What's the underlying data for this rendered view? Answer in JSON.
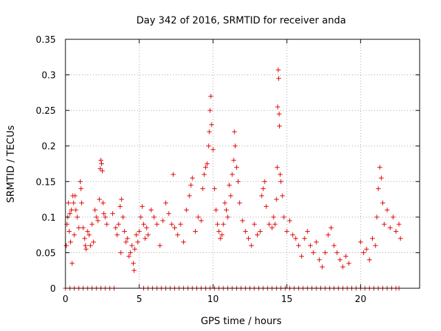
{
  "chart_data": {
    "type": "scatter",
    "title": "Day 342 of 2016, SRMTID for receiver anda",
    "xlabel": "GPS time / hours",
    "ylabel": "SRMTID / TECUs",
    "xlim": [
      0,
      24
    ],
    "ylim": [
      0,
      0.35
    ],
    "xticks": [
      0,
      5,
      10,
      15,
      20
    ],
    "xtick_labels": [
      "0",
      "5",
      "10",
      "15",
      "20"
    ],
    "yticks": [
      0,
      0.05,
      0.1,
      0.15,
      0.2,
      0.25,
      0.3,
      0.35
    ],
    "ytick_labels": [
      "0",
      "0.05",
      "0.1",
      "0.15",
      "0.2",
      "0.25",
      "0.3",
      "0.35"
    ],
    "grid": true,
    "marker": "+",
    "color": "#e00000",
    "series": [
      {
        "name": "SRMTID",
        "points": [
          [
            0.05,
            0.06
          ],
          [
            0.1,
            0.09
          ],
          [
            0.15,
            0.1
          ],
          [
            0.2,
            0.12
          ],
          [
            0.25,
            0.08
          ],
          [
            0.3,
            0.105
          ],
          [
            0.35,
            0.065
          ],
          [
            0.4,
            0.11
          ],
          [
            0.45,
            0.035
          ],
          [
            0.5,
            0.13
          ],
          [
            0.55,
            0.12
          ],
          [
            0.6,
            0.075
          ],
          [
            0.65,
            0.13
          ],
          [
            0.7,
            0.11
          ],
          [
            0.8,
            0.1
          ],
          [
            0.9,
            0.085
          ],
          [
            1.0,
            0.15
          ],
          [
            1.05,
            0.14
          ],
          [
            1.1,
            0.12
          ],
          [
            1.2,
            0.085
          ],
          [
            1.3,
            0.07
          ],
          [
            1.35,
            0.06
          ],
          [
            1.4,
            0.055
          ],
          [
            1.5,
            0.08
          ],
          [
            1.6,
            0.075
          ],
          [
            1.7,
            0.06
          ],
          [
            1.8,
            0.09
          ],
          [
            1.9,
            0.065
          ],
          [
            2.0,
            0.11
          ],
          [
            2.1,
            0.1
          ],
          [
            2.2,
            0.095
          ],
          [
            2.3,
            0.125
          ],
          [
            2.35,
            0.168
          ],
          [
            2.4,
            0.18
          ],
          [
            2.45,
            0.175
          ],
          [
            2.5,
            0.165
          ],
          [
            2.55,
            0.12
          ],
          [
            2.6,
            0.105
          ],
          [
            2.7,
            0.1
          ],
          [
            2.8,
            0.09
          ],
          [
            3.2,
            0.105
          ],
          [
            3.4,
            0.085
          ],
          [
            3.5,
            0.075
          ],
          [
            3.6,
            0.09
          ],
          [
            3.7,
            0.115
          ],
          [
            3.75,
            0.05
          ],
          [
            3.8,
            0.125
          ],
          [
            3.9,
            0.1
          ],
          [
            4.0,
            0.08
          ],
          [
            4.1,
            0.065
          ],
          [
            4.2,
            0.07
          ],
          [
            4.3,
            0.045
          ],
          [
            4.4,
            0.05
          ],
          [
            4.5,
            0.06
          ],
          [
            4.6,
            0.035
          ],
          [
            4.65,
            0.025
          ],
          [
            4.7,
            0.055
          ],
          [
            4.8,
            0.075
          ],
          [
            4.9,
            0.065
          ],
          [
            5.0,
            0.08
          ],
          [
            5.1,
            0.1
          ],
          [
            5.2,
            0.115
          ],
          [
            5.3,
            0.09
          ],
          [
            5.4,
            0.07
          ],
          [
            5.5,
            0.085
          ],
          [
            5.6,
            0.075
          ],
          [
            5.8,
            0.11
          ],
          [
            6.0,
            0.1
          ],
          [
            6.2,
            0.09
          ],
          [
            6.4,
            0.06
          ],
          [
            6.6,
            0.095
          ],
          [
            6.8,
            0.12
          ],
          [
            7.0,
            0.105
          ],
          [
            7.2,
            0.09
          ],
          [
            7.3,
            0.16
          ],
          [
            7.4,
            0.085
          ],
          [
            7.6,
            0.075
          ],
          [
            7.8,
            0.09
          ],
          [
            8.0,
            0.065
          ],
          [
            8.2,
            0.11
          ],
          [
            8.4,
            0.13
          ],
          [
            8.5,
            0.145
          ],
          [
            8.6,
            0.155
          ],
          [
            8.8,
            0.08
          ],
          [
            9.0,
            0.1
          ],
          [
            9.2,
            0.095
          ],
          [
            9.3,
            0.14
          ],
          [
            9.4,
            0.16
          ],
          [
            9.5,
            0.17
          ],
          [
            9.6,
            0.175
          ],
          [
            9.7,
            0.2
          ],
          [
            9.75,
            0.22
          ],
          [
            9.8,
            0.25
          ],
          [
            9.85,
            0.27
          ],
          [
            9.9,
            0.23
          ],
          [
            10.0,
            0.195
          ],
          [
            10.1,
            0.14
          ],
          [
            10.2,
            0.11
          ],
          [
            10.3,
            0.09
          ],
          [
            10.4,
            0.08
          ],
          [
            10.5,
            0.07
          ],
          [
            10.6,
            0.075
          ],
          [
            10.7,
            0.09
          ],
          [
            10.8,
            0.12
          ],
          [
            10.9,
            0.11
          ],
          [
            11.0,
            0.1
          ],
          [
            11.1,
            0.145
          ],
          [
            11.2,
            0.13
          ],
          [
            11.3,
            0.16
          ],
          [
            11.4,
            0.18
          ],
          [
            11.45,
            0.22
          ],
          [
            11.5,
            0.2
          ],
          [
            11.6,
            0.17
          ],
          [
            11.7,
            0.15
          ],
          [
            11.8,
            0.12
          ],
          [
            12.0,
            0.095
          ],
          [
            12.2,
            0.08
          ],
          [
            12.4,
            0.07
          ],
          [
            12.6,
            0.06
          ],
          [
            12.8,
            0.09
          ],
          [
            13.0,
            0.075
          ],
          [
            13.2,
            0.08
          ],
          [
            13.3,
            0.13
          ],
          [
            13.4,
            0.14
          ],
          [
            13.5,
            0.15
          ],
          [
            13.6,
            0.115
          ],
          [
            13.8,
            0.09
          ],
          [
            14.0,
            0.085
          ],
          [
            14.1,
            0.1
          ],
          [
            14.2,
            0.09
          ],
          [
            14.3,
            0.125
          ],
          [
            14.35,
            0.17
          ],
          [
            14.38,
            0.255
          ],
          [
            14.42,
            0.307
          ],
          [
            14.45,
            0.295
          ],
          [
            14.48,
            0.245
          ],
          [
            14.5,
            0.228
          ],
          [
            14.55,
            0.16
          ],
          [
            14.6,
            0.15
          ],
          [
            14.7,
            0.13
          ],
          [
            14.8,
            0.1
          ],
          [
            15.0,
            0.08
          ],
          [
            15.2,
            0.095
          ],
          [
            15.4,
            0.075
          ],
          [
            15.6,
            0.07
          ],
          [
            15.8,
            0.06
          ],
          [
            16.0,
            0.045
          ],
          [
            16.2,
            0.07
          ],
          [
            16.4,
            0.08
          ],
          [
            16.6,
            0.06
          ],
          [
            16.8,
            0.05
          ],
          [
            17.0,
            0.065
          ],
          [
            17.2,
            0.04
          ],
          [
            17.4,
            0.03
          ],
          [
            17.6,
            0.05
          ],
          [
            17.8,
            0.075
          ],
          [
            18.0,
            0.085
          ],
          [
            18.2,
            0.06
          ],
          [
            18.4,
            0.05
          ],
          [
            18.6,
            0.04
          ],
          [
            18.8,
            0.03
          ],
          [
            19.0,
            0.045
          ],
          [
            19.2,
            0.035
          ],
          [
            20.0,
            0.065
          ],
          [
            20.2,
            0.05
          ],
          [
            20.4,
            0.055
          ],
          [
            20.6,
            0.04
          ],
          [
            20.8,
            0.07
          ],
          [
            21.0,
            0.06
          ],
          [
            21.1,
            0.1
          ],
          [
            21.2,
            0.14
          ],
          [
            21.3,
            0.17
          ],
          [
            21.4,
            0.155
          ],
          [
            21.5,
            0.12
          ],
          [
            21.6,
            0.09
          ],
          [
            21.8,
            0.11
          ],
          [
            22.0,
            0.085
          ],
          [
            22.2,
            0.1
          ],
          [
            22.4,
            0.08
          ],
          [
            22.6,
            0.09
          ],
          [
            22.7,
            0.07
          ],
          [
            0.0,
            0
          ],
          [
            0.3,
            0
          ],
          [
            0.6,
            0
          ],
          [
            0.9,
            0
          ],
          [
            1.2,
            0
          ],
          [
            1.5,
            0
          ],
          [
            1.8,
            0
          ],
          [
            2.1,
            0
          ],
          [
            2.4,
            0
          ],
          [
            2.7,
            0
          ],
          [
            3.0,
            0
          ],
          [
            3.3,
            0
          ],
          [
            5.3,
            0
          ],
          [
            5.6,
            0
          ],
          [
            5.9,
            0
          ],
          [
            6.2,
            0
          ],
          [
            6.5,
            0
          ],
          [
            6.8,
            0
          ],
          [
            7.1,
            0
          ],
          [
            7.4,
            0
          ],
          [
            7.7,
            0
          ],
          [
            8.0,
            0
          ],
          [
            8.3,
            0
          ],
          [
            8.6,
            0
          ],
          [
            8.9,
            0
          ],
          [
            9.2,
            0
          ],
          [
            9.5,
            0
          ],
          [
            9.8,
            0
          ],
          [
            10.1,
            0
          ],
          [
            10.4,
            0
          ],
          [
            10.7,
            0
          ],
          [
            11.0,
            0
          ],
          [
            11.3,
            0
          ],
          [
            11.6,
            0
          ],
          [
            11.9,
            0
          ],
          [
            12.2,
            0
          ],
          [
            12.5,
            0
          ],
          [
            12.8,
            0
          ],
          [
            13.1,
            0
          ],
          [
            13.4,
            0
          ],
          [
            13.7,
            0
          ],
          [
            14.0,
            0
          ],
          [
            14.3,
            0
          ],
          [
            14.6,
            0
          ],
          [
            14.9,
            0
          ],
          [
            15.2,
            0
          ],
          [
            15.5,
            0
          ],
          [
            15.8,
            0
          ],
          [
            16.1,
            0
          ],
          [
            16.4,
            0
          ],
          [
            16.7,
            0
          ],
          [
            17.0,
            0
          ],
          [
            17.3,
            0
          ],
          [
            17.6,
            0
          ],
          [
            17.9,
            0
          ],
          [
            18.2,
            0
          ],
          [
            18.5,
            0
          ],
          [
            18.8,
            0
          ],
          [
            19.1,
            0
          ],
          [
            19.4,
            0
          ],
          [
            19.7,
            0
          ],
          [
            20.0,
            0
          ],
          [
            20.3,
            0
          ],
          [
            20.6,
            0
          ],
          [
            20.9,
            0
          ],
          [
            21.2,
            0
          ],
          [
            21.5,
            0
          ],
          [
            21.8,
            0
          ],
          [
            22.1,
            0
          ],
          [
            22.4,
            0
          ],
          [
            22.6,
            0
          ]
        ]
      }
    ]
  }
}
